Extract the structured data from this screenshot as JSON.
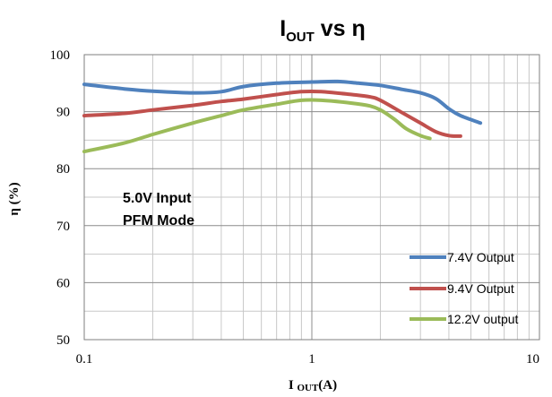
{
  "chart_data": {
    "type": "line",
    "title": {
      "main": "I",
      "sub": "OUT",
      "suffix": " vs η"
    },
    "xlabel": {
      "main": "I ",
      "sub": "OUT",
      "suffix": "(A)"
    },
    "ylabel": "η (%)",
    "x_scale": "log",
    "xlim": [
      0.1,
      10
    ],
    "ylim": [
      50,
      100
    ],
    "x_ticks": [
      "0.1",
      "1",
      "10"
    ],
    "y_ticks": [
      "50",
      "60",
      "70",
      "80",
      "90",
      "100"
    ],
    "grid": true,
    "legend_position": "bottom-right",
    "annotations": [
      "5.0V Input",
      "PFM Mode"
    ],
    "series": [
      {
        "name": "7.4V Output",
        "color": "#4f81bd",
        "points": [
          [
            0.1,
            94.8
          ],
          [
            0.15,
            94.0
          ],
          [
            0.2,
            93.6
          ],
          [
            0.3,
            93.3
          ],
          [
            0.4,
            93.5
          ],
          [
            0.5,
            94.4
          ],
          [
            0.7,
            95.0
          ],
          [
            1.0,
            95.2
          ],
          [
            1.3,
            95.3
          ],
          [
            1.6,
            95.0
          ],
          [
            2.0,
            94.6
          ],
          [
            2.5,
            93.9
          ],
          [
            3.0,
            93.3
          ],
          [
            3.5,
            92.3
          ],
          [
            4.0,
            90.5
          ],
          [
            4.5,
            89.3
          ],
          [
            5.5,
            88.0
          ]
        ]
      },
      {
        "name": "9.4V Output",
        "color": "#c0504d",
        "points": [
          [
            0.1,
            89.3
          ],
          [
            0.15,
            89.7
          ],
          [
            0.2,
            90.3
          ],
          [
            0.3,
            91.1
          ],
          [
            0.4,
            91.8
          ],
          [
            0.5,
            92.2
          ],
          [
            0.7,
            93.0
          ],
          [
            0.9,
            93.5
          ],
          [
            1.1,
            93.5
          ],
          [
            1.5,
            93.0
          ],
          [
            1.8,
            92.6
          ],
          [
            2.0,
            92.0
          ],
          [
            2.5,
            89.8
          ],
          [
            3.0,
            88.0
          ],
          [
            3.5,
            86.5
          ],
          [
            4.0,
            85.8
          ],
          [
            4.5,
            85.7
          ]
        ]
      },
      {
        "name": "12.2V output",
        "color": "#9bbb59",
        "points": [
          [
            0.1,
            83.0
          ],
          [
            0.15,
            84.5
          ],
          [
            0.2,
            86.0
          ],
          [
            0.3,
            88.0
          ],
          [
            0.4,
            89.3
          ],
          [
            0.5,
            90.3
          ],
          [
            0.7,
            91.3
          ],
          [
            0.9,
            92.0
          ],
          [
            1.1,
            92.0
          ],
          [
            1.5,
            91.5
          ],
          [
            1.8,
            91.0
          ],
          [
            2.0,
            90.3
          ],
          [
            2.3,
            88.7
          ],
          [
            2.6,
            87.0
          ],
          [
            3.0,
            85.8
          ],
          [
            3.3,
            85.3
          ]
        ]
      }
    ]
  }
}
